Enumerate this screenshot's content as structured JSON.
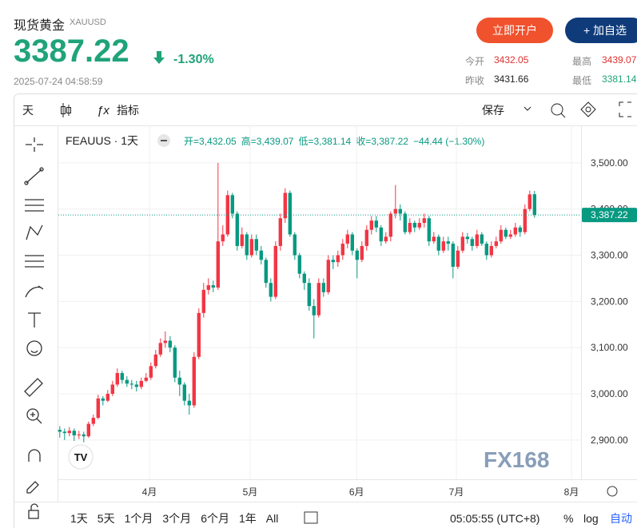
{
  "header": {
    "title": "现货黄金",
    "symbol": "XAUUSD",
    "price": "3387.22",
    "change": "-1.30%",
    "time": "2025-07-24 04:58:59",
    "open_account": "立即开户",
    "add_watch": "+ 加自选",
    "stats": [
      {
        "label": "今开",
        "value": "3432.05"
      },
      {
        "label": "最高",
        "value": "3439.07"
      },
      {
        "label": "昨收",
        "value": "3431.66"
      },
      {
        "label": "最低",
        "value": "3381.14"
      }
    ]
  },
  "toolbar": {
    "interval": "天",
    "indicators": "指标",
    "save": "保存"
  },
  "bottom_bar": {
    "ranges": [
      "1天",
      "5天",
      "1个月",
      "3个月",
      "6个月",
      "1年",
      "All"
    ],
    "clock": "05:05:55 (UTC+8)",
    "percent": "%",
    "log": "log",
    "auto": "自动"
  },
  "watermark": "FX168",
  "chart_data": {
    "type": "candlestick",
    "symbol_label": "FEAUUS · 1天",
    "legend": [
      "开=3,432.05",
      "高=3,439.07",
      "低=3,381.14",
      "收=3,387.22",
      "−44.44 (−1.30%)"
    ],
    "up_color": "#f23645",
    "down_color": "#089981",
    "open": [
      2922,
      2918,
      2915,
      2920,
      2910,
      2912,
      2908,
      2935,
      2948,
      2990,
      2985,
      3000,
      3020,
      3045,
      3030,
      3022,
      3020,
      3015,
      3028,
      3035,
      3060,
      3085,
      3110,
      3115,
      3100,
      3035,
      3020,
      2985,
      2975,
      3080,
      3175,
      3225,
      3235,
      3230,
      3330,
      3345,
      3430,
      3390,
      3320,
      3345,
      3300,
      3335,
      3310,
      3290,
      3240,
      3210,
      3320,
      3380,
      3435,
      3345,
      3300,
      3260,
      3240,
      3190,
      3170,
      3240,
      3220,
      3290,
      3285,
      3300,
      3325,
      3345,
      3310,
      3290,
      3320,
      3355,
      3375,
      3360,
      3330,
      3340,
      3390,
      3400,
      3390,
      3350,
      3370,
      3360,
      3370,
      3380,
      3330,
      3340,
      3310,
      3330,
      3325,
      3275,
      3310,
      3340,
      3335,
      3320,
      3345,
      3325,
      3300,
      3320,
      3330,
      3355,
      3340,
      3345,
      3360,
      3350,
      3400,
      3432.05
    ],
    "high": [
      2930,
      2925,
      2928,
      2925,
      2920,
      2918,
      2940,
      2955,
      2998,
      2995,
      3008,
      3028,
      3055,
      3050,
      3038,
      3030,
      3028,
      3035,
      3045,
      3068,
      3095,
      3120,
      3135,
      3125,
      3105,
      3050,
      3025,
      3000,
      3090,
      3185,
      3240,
      3250,
      3245,
      3500,
      3365,
      3440,
      3435,
      3395,
      3360,
      3350,
      3345,
      3345,
      3320,
      3295,
      3250,
      3330,
      3390,
      3445,
      3440,
      3350,
      3305,
      3265,
      3250,
      3205,
      3250,
      3250,
      3300,
      3300,
      3310,
      3335,
      3355,
      3350,
      3315,
      3330,
      3365,
      3385,
      3385,
      3365,
      3350,
      3395,
      3452,
      3410,
      3395,
      3380,
      3375,
      3380,
      3390,
      3385,
      3350,
      3345,
      3340,
      3340,
      3330,
      3320,
      3350,
      3348,
      3340,
      3355,
      3350,
      3330,
      3330,
      3340,
      3365,
      3360,
      3355,
      3370,
      3365,
      3410,
      3440,
      3439.07
    ],
    "low": [
      2905,
      2900,
      2908,
      2898,
      2902,
      2895,
      2905,
      2930,
      2945,
      2975,
      2982,
      2995,
      3015,
      3022,
      3015,
      3010,
      3005,
      3010,
      3025,
      3030,
      3055,
      3080,
      3100,
      3090,
      3025,
      2995,
      2975,
      2955,
      2970,
      3075,
      3165,
      3215,
      3220,
      3225,
      3320,
      3340,
      3380,
      3310,
      3315,
      3290,
      3295,
      3300,
      3280,
      3230,
      3200,
      3205,
      3310,
      3370,
      3340,
      3290,
      3250,
      3225,
      3180,
      3120,
      3165,
      3210,
      3215,
      3270,
      3275,
      3290,
      3315,
      3300,
      3250,
      3285,
      3310,
      3345,
      3350,
      3320,
      3325,
      3330,
      3380,
      3375,
      3345,
      3345,
      3350,
      3355,
      3360,
      3320,
      3325,
      3300,
      3305,
      3310,
      3250,
      3270,
      3305,
      3325,
      3310,
      3315,
      3320,
      3290,
      3295,
      3315,
      3325,
      3335,
      3335,
      3340,
      3340,
      3345,
      3395,
      3381.14
    ],
    "close": [
      2918,
      2915,
      2920,
      2910,
      2912,
      2908,
      2935,
      2948,
      2990,
      2985,
      3000,
      3020,
      3045,
      3030,
      3022,
      3020,
      3015,
      3028,
      3035,
      3060,
      3085,
      3110,
      3115,
      3100,
      3035,
      3020,
      2985,
      2975,
      3080,
      3175,
      3225,
      3235,
      3230,
      3330,
      3345,
      3430,
      3390,
      3320,
      3345,
      3300,
      3335,
      3310,
      3290,
      3240,
      3210,
      3320,
      3380,
      3435,
      3345,
      3300,
      3260,
      3240,
      3190,
      3170,
      3240,
      3220,
      3290,
      3285,
      3300,
      3325,
      3345,
      3310,
      3290,
      3320,
      3355,
      3375,
      3360,
      3330,
      3340,
      3390,
      3400,
      3390,
      3350,
      3370,
      3360,
      3370,
      3380,
      3330,
      3340,
      3310,
      3330,
      3325,
      3275,
      3310,
      3340,
      3335,
      3320,
      3345,
      3325,
      3300,
      3320,
      3330,
      3355,
      3340,
      3345,
      3360,
      3350,
      3400,
      3431.66,
      3387.22
    ],
    "price_line": {
      "value": 3387.22,
      "label": "3,387.22"
    },
    "xlim": [
      -0.3,
      108.7
    ],
    "xticks": [
      {
        "value": 18.7,
        "label": "4月"
      },
      {
        "value": 39.7,
        "label": "5月"
      },
      {
        "value": 61.9,
        "label": "6月"
      },
      {
        "value": 82.7,
        "label": "7月"
      },
      {
        "value": 106.7,
        "label": "8月"
      }
    ],
    "ylim": [
      2815,
      3581
    ],
    "yticks": [
      {
        "value": 2900,
        "label": "2,900.00"
      },
      {
        "value": 3000,
        "label": "3,000.00"
      },
      {
        "value": 3100,
        "label": "3,100.00"
      },
      {
        "value": 3200,
        "label": "3,200.00"
      },
      {
        "value": 3300,
        "label": "3,300.00"
      },
      {
        "value": 3400,
        "label": "3,400.00"
      },
      {
        "value": 3500,
        "label": "3,500.00"
      }
    ],
    "grid": true
  }
}
